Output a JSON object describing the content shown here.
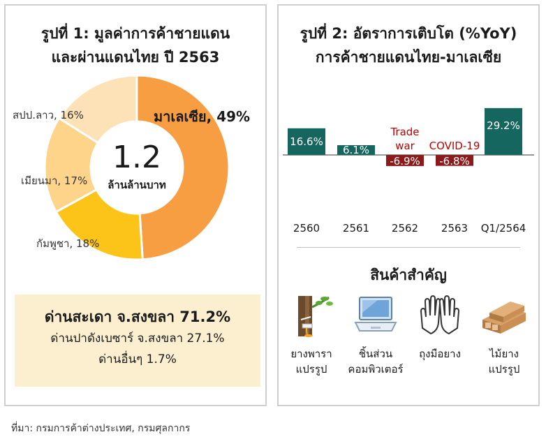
{
  "colors": {
    "malaysia": "#f79e42",
    "cambodia": "#fcc419",
    "myanmar": "#fdd48a",
    "laos": "#fde1b7",
    "positive_bar": "#14665e",
    "negative_bar": "#8b1a1a",
    "annotation": "#c00000",
    "highlight_box": "#fcefcf"
  },
  "figure1": {
    "title_line1": "รูปที่ 1: มูลค่าการค้าชายแดน",
    "title_line2": "และผ่านแดนไทย ปี 2563",
    "center_value": "1.2",
    "center_unit": "ล้านล้านบาท",
    "checkpoints": {
      "main": "ด่านสะเดา จ.สงขลา 71.2%",
      "second": "ด่านปาดังเบซาร์ จ.สงขลา 27.1%",
      "third": "ด่านอื่นๆ 1.7%"
    }
  },
  "figure2": {
    "title_line1": "รูปที่ 2: อัตราการเติบโต (%YoY)",
    "title_line2": "การค้าชายแดนไทย-มาเลเซีย"
  },
  "products": {
    "title": "สินค้าสำคัญ",
    "items": [
      {
        "line1": "ยางพารา",
        "line2": "แปรรูป",
        "icon": "rubber-tree-icon"
      },
      {
        "line1": "ชิ้นส่วน",
        "line2": "คอมพิวเตอร์",
        "icon": "laptop-icon"
      },
      {
        "line1": "ถุงมือยาง",
        "line2": "",
        "icon": "gloves-icon"
      },
      {
        "line1": "ไม้ยาง",
        "line2": "แปรรูป",
        "icon": "lumber-icon"
      }
    ]
  },
  "source": "ที่มา: กรมการค้าต่างประเทศ, กรมศุลกากร",
  "chart_data": [
    {
      "type": "pie",
      "donut": true,
      "title": "รูปที่ 1: มูลค่าการค้าชายแดนและผ่านแดนไทย ปี 2563",
      "center_label": "1.2 ล้านล้านบาท",
      "slices": [
        {
          "label": "มาเลเซีย",
          "value": 49,
          "display": "มาเลเซีย, 49%"
        },
        {
          "label": "กัมพูชา",
          "value": 18,
          "display": "กัมพูชา, 18%"
        },
        {
          "label": "เมียนมา",
          "value": 17,
          "display": "เมียนมา, 17%"
        },
        {
          "label": "สปป.ลาว",
          "value": 16,
          "display": "สปป.ลาว, 16%"
        }
      ]
    },
    {
      "type": "bar",
      "title": "รูปที่ 2: อัตราการเติบโต (%YoY) การค้าชายแดนไทย-มาเลเซีย",
      "categories": [
        "2560",
        "2561",
        "2562",
        "2563",
        "Q1/2564"
      ],
      "values": [
        16.6,
        6.1,
        -6.9,
        -6.8,
        29.2
      ],
      "value_labels": [
        "16.6%",
        "6.1%",
        "-6.9%",
        "-6.8%",
        "29.2%"
      ],
      "annotations": [
        {
          "category": "2562",
          "lines": [
            "Trade",
            "war"
          ]
        },
        {
          "category": "2563",
          "lines": [
            "COVID-19"
          ]
        }
      ],
      "xlabel": "",
      "ylabel": "",
      "ylim": [
        -10,
        30
      ],
      "grid": false
    }
  ]
}
